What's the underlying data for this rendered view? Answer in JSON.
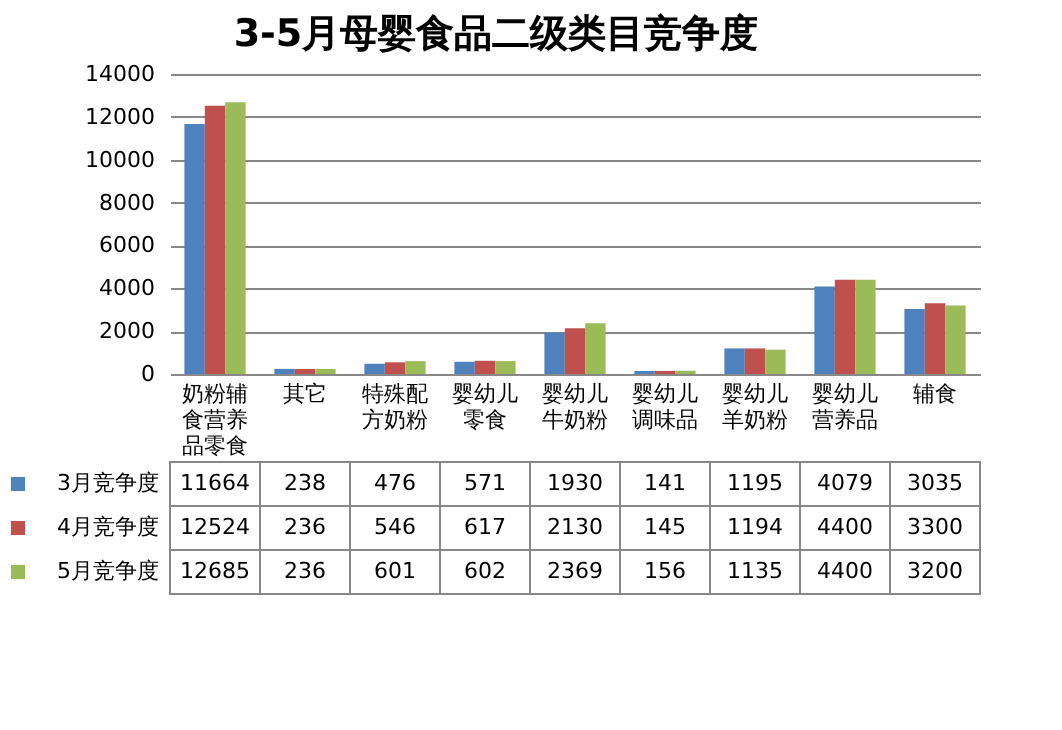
{
  "chart_data": {
    "type": "bar",
    "title": "3-5月母婴食品二级类目竞争度",
    "categories": [
      "奶粉辅食营养品零食",
      "其它",
      "特殊配方奶粉",
      "婴幼儿零食",
      "婴幼儿牛奶粉",
      "婴幼儿调味品",
      "婴幼儿羊奶粉",
      "婴幼儿营养品",
      "辅食"
    ],
    "series": [
      {
        "name": "3月竞争度",
        "color": "#4f81bd",
        "values": [
          11664,
          238,
          476,
          571,
          1930,
          141,
          1195,
          4079,
          3035
        ]
      },
      {
        "name": "4月竞争度",
        "color": "#c0504d",
        "values": [
          12524,
          236,
          546,
          617,
          2130,
          145,
          1194,
          4400,
          3300
        ]
      },
      {
        "name": "5月竞争度",
        "color": "#9bbb59",
        "values": [
          12685,
          236,
          601,
          602,
          2369,
          156,
          1135,
          4400,
          3200
        ]
      }
    ],
    "ylim": [
      0,
      14000
    ],
    "yticks": [
      0,
      2000,
      4000,
      6000,
      8000,
      10000,
      12000,
      14000
    ],
    "grid": "y",
    "legend": "bottom left",
    "data_labels": true
  }
}
